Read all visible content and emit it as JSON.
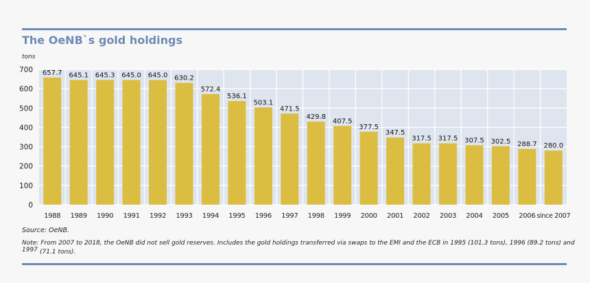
{
  "chart_data": {
    "type": "bar",
    "title": "The OeNB`s gold holdings",
    "ylabel": "tons",
    "xlabel": "",
    "ylim": [
      0,
      700
    ],
    "yticks": [
      0,
      100,
      200,
      300,
      400,
      500,
      600,
      700
    ],
    "grid": true,
    "categories": [
      "1988",
      "1989",
      "1990",
      "1991",
      "1992",
      "1993",
      "1994",
      "1995",
      "1996",
      "1997",
      "1998",
      "1999",
      "2000",
      "2001",
      "2002",
      "2003",
      "2004",
      "2005",
      "2006",
      "since 2007"
    ],
    "values": [
      657.7,
      645.1,
      645.3,
      645.0,
      645.0,
      630.2,
      572.4,
      536.1,
      503.1,
      471.5,
      429.8,
      407.5,
      377.5,
      347.5,
      317.5,
      317.5,
      307.5,
      302.5,
      288.7,
      280.0
    ],
    "labels": [
      "657.7",
      "645.1",
      "645.3",
      "645.0",
      "645.0",
      "630.2",
      "572.4",
      "536.1",
      "503.1",
      "471.5",
      "429.8",
      "407.5",
      "377.5",
      "347.5",
      "317.5",
      "317.5",
      "307.5",
      "302.5",
      "288.7",
      "280.0"
    ],
    "bar_color": "#dbbd42",
    "plot_bg": "#dfe5ef"
  },
  "source": "Source: OeNB.",
  "note": "Note: From 2007 to 2018, the OeNB did not sell gold reserves. Includes the gold holdings transferred via swaps to the EMI and the ECB in 1995 (101.3 tons), 1996 (89.2 tons) and 1997",
  "note_cont": "(71.1 tons)."
}
